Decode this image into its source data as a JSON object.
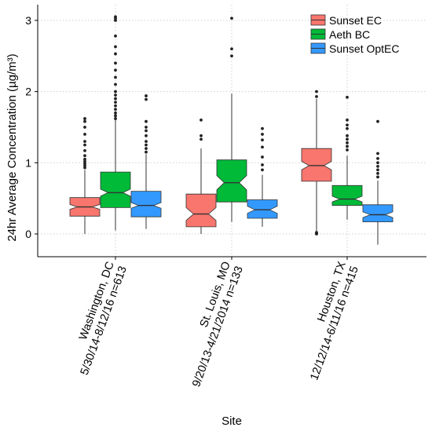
{
  "chart_data": {
    "type": "boxplot",
    "notched": true,
    "ylabel": "24hr Average Concentration (µg/m³)",
    "xlabel": "Site",
    "ylim": [
      -0.32,
      3.22
    ],
    "yticks": [
      0,
      1,
      2,
      3
    ],
    "grid": true,
    "legend_position": "top-right",
    "categories": [
      {
        "label1": "Washington, DC",
        "label2": "5/30/14-8/12/16 n=613"
      },
      {
        "label1": "St. Louis, MO",
        "label2": "9/20/13-4/21/2014 n=133"
      },
      {
        "label1": "Houston, TX",
        "label2": "12/12/14-6/11/16 n=415"
      }
    ],
    "series": [
      {
        "name": "Sunset EC",
        "color": "#F8766D",
        "boxes": [
          {
            "min": 0.0,
            "q1": 0.25,
            "median": 0.38,
            "q3": 0.51,
            "max": 0.9,
            "notch": 0.035,
            "outliers": [
              0.93,
              0.96,
              0.99,
              1.02,
              1.05,
              1.1,
              1.17,
              1.25,
              1.3,
              1.4,
              1.5,
              1.58,
              1.62
            ]
          },
          {
            "min": 0.0,
            "q1": 0.1,
            "median": 0.28,
            "q3": 0.56,
            "max": 1.2,
            "notch": 0.09,
            "outliers": [
              1.33,
              1.38,
              1.6
            ]
          },
          {
            "min": 0.03,
            "q1": 0.74,
            "median": 0.96,
            "q3": 1.2,
            "max": 1.9,
            "notch": 0.06,
            "outliers": [
              0.0,
              0.01,
              0.02,
              1.93,
              2.0
            ]
          }
        ]
      },
      {
        "name": "Aeth BC",
        "color": "#00BA38",
        "boxes": [
          {
            "min": 0.05,
            "q1": 0.37,
            "median": 0.58,
            "q3": 0.87,
            "max": 1.6,
            "notch": 0.05,
            "outliers": [
              1.62,
              1.66,
              1.7,
              1.75,
              1.8,
              1.85,
              1.9,
              1.95,
              2.0,
              2.1,
              2.2,
              2.3,
              2.4,
              2.53,
              2.63,
              2.78,
              3.0,
              3.03,
              3.05
            ]
          },
          {
            "min": 0.17,
            "q1": 0.45,
            "median": 0.72,
            "q3": 1.04,
            "max": 1.97,
            "notch": 0.1,
            "outliers": [
              2.5,
              2.6,
              3.03
            ]
          },
          {
            "min": 0.2,
            "q1": 0.4,
            "median": 0.49,
            "q3": 0.68,
            "max": 1.1,
            "notch": 0.04,
            "outliers": [
              1.18,
              1.23,
              1.28,
              1.33,
              1.38,
              1.48,
              1.53,
              1.6,
              1.92
            ]
          }
        ]
      },
      {
        "name": "Sunset OptEC",
        "color": "#3399FF",
        "boxes": [
          {
            "min": 0.07,
            "q1": 0.24,
            "median": 0.4,
            "q3": 0.6,
            "max": 1.12,
            "notch": 0.04,
            "outliers": [
              1.15,
              1.2,
              1.25,
              1.3,
              1.38,
              1.45,
              1.5,
              1.58,
              1.89,
              1.94
            ]
          },
          {
            "min": 0.1,
            "q1": 0.22,
            "median": 0.34,
            "q3": 0.48,
            "max": 0.83,
            "notch": 0.05,
            "outliers": [
              0.9,
              0.97,
              1.08,
              1.22,
              1.32,
              1.4,
              1.48
            ]
          },
          {
            "min": -0.15,
            "q1": 0.17,
            "median": 0.27,
            "q3": 0.41,
            "max": 0.75,
            "notch": 0.04,
            "outliers": [
              0.8,
              0.85,
              0.9,
              0.95,
              1.0,
              1.06,
              1.13,
              1.58
            ]
          }
        ]
      }
    ]
  }
}
